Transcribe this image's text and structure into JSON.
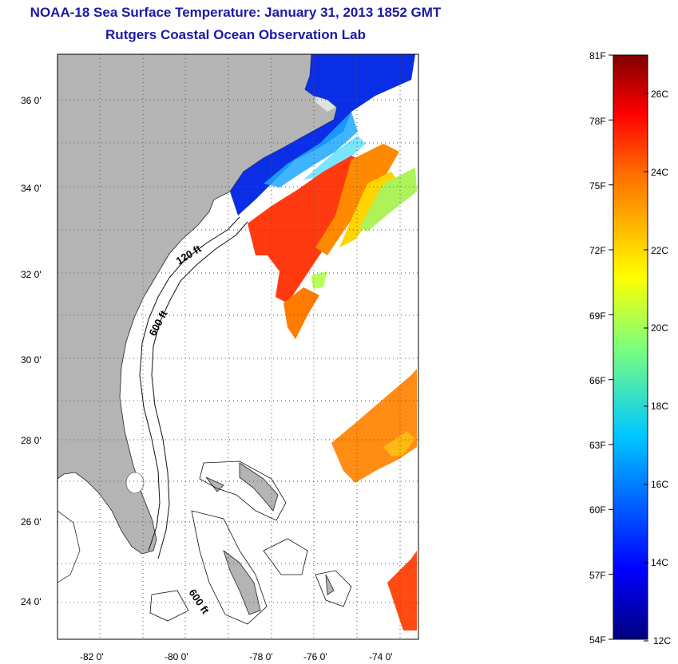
{
  "header": {
    "title": "NOAA-18 Sea Surface Temperature:  January 31, 2013 1852 GMT",
    "subtitle": "Rutgers Coastal Ocean Observation Lab"
  },
  "map": {
    "lat_labels": [
      "36 0'",
      "34 0'",
      "32 0'",
      "30 0'",
      "28 0'",
      "26 0'",
      "24 0'"
    ],
    "lon_labels": [
      "-82 0'",
      "-80 0'",
      "-78 0'",
      "-76 0'",
      "-74 0'"
    ],
    "contour_labels": [
      "120 ft",
      "600 ft",
      "600 ft"
    ],
    "land_color": "#b4b4b4",
    "grid": "dotted"
  },
  "colorbar": {
    "f_labels": [
      "81F",
      "78F",
      "75F",
      "72F",
      "69F",
      "66F",
      "63F",
      "60F",
      "57F",
      "54F"
    ],
    "c_labels": [
      "26C",
      "24C",
      "22C",
      "20C",
      "18C",
      "16C",
      "14C",
      "12C"
    ]
  }
}
